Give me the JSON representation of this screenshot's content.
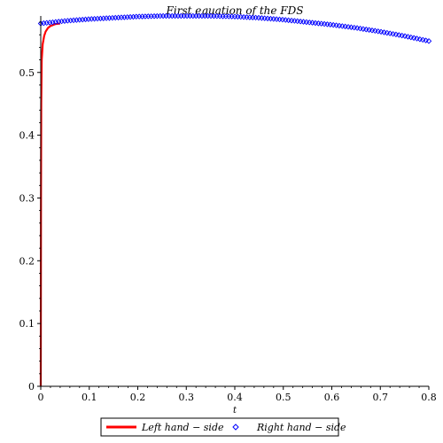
{
  "chart_data": {
    "type": "line",
    "title": "First equation of the FDS",
    "xlabel": "t",
    "ylabel": "",
    "xlim": [
      0,
      0.8
    ],
    "ylim": [
      0,
      0.59
    ],
    "x_ticks": [
      "0",
      "0.1",
      "0.2",
      "0.3",
      "0.4",
      "0.5",
      "0.6",
      "0.7",
      "0.8"
    ],
    "y_ticks": [
      "0",
      "0.1",
      "0.2",
      "0.3",
      "0.4",
      "0.5"
    ],
    "legend_position": "bottom",
    "series": [
      {
        "name": "Left hand − side",
        "style": "line",
        "color": "#ff0000",
        "x": [
          0,
          0.0005,
          0.001,
          0.002,
          0.004,
          0.007,
          0.01,
          0.015,
          0.02,
          0.03,
          0.04
        ],
        "y": [
          0,
          0.3,
          0.45,
          0.52,
          0.545,
          0.558,
          0.565,
          0.571,
          0.574,
          0.577,
          0.578
        ]
      },
      {
        "name": "Right hand − side",
        "style": "diamond",
        "color": "#0000ff",
        "x": [
          0,
          0.05,
          0.1,
          0.15,
          0.2,
          0.25,
          0.3,
          0.35,
          0.4,
          0.45,
          0.5,
          0.55,
          0.6,
          0.65,
          0.7,
          0.75,
          0.8
        ],
        "y": [
          0.578,
          0.582,
          0.585,
          0.587,
          0.589,
          0.59,
          0.59,
          0.59,
          0.589,
          0.587,
          0.584,
          0.58,
          0.576,
          0.571,
          0.565,
          0.558,
          0.55
        ]
      }
    ]
  }
}
